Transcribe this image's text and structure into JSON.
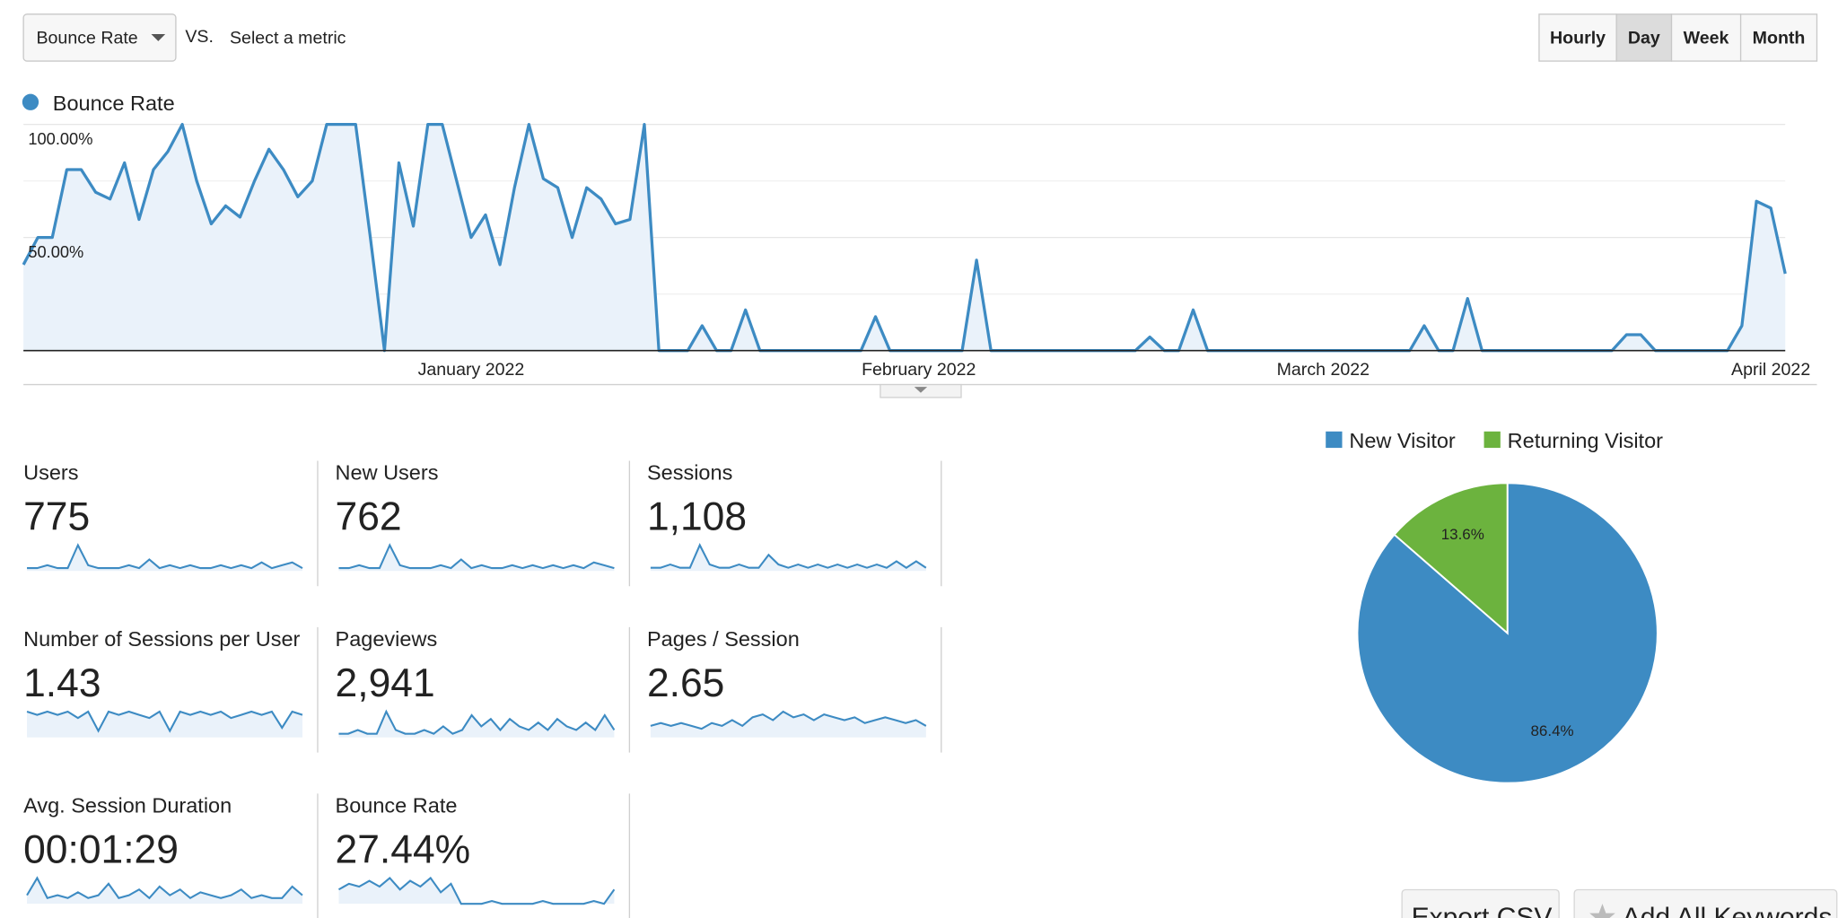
{
  "controls": {
    "metric": "Bounce Rate",
    "vs": "VS.",
    "select": "Select a metric",
    "periods": [
      "Hourly",
      "Day",
      "Week",
      "Month"
    ],
    "active_period": "Day"
  },
  "chart_data": [
    {
      "type": "line",
      "categories": [
        null,
        null,
        null,
        null,
        null,
        null,
        null,
        null,
        null,
        null,
        null,
        null,
        null,
        null,
        null,
        null,
        null,
        null,
        null,
        null,
        null,
        null,
        null,
        null,
        null,
        null,
        null,
        null,
        null,
        null,
        null,
        "January 2022",
        null,
        null,
        null,
        null,
        null,
        null,
        null,
        null,
        null,
        null,
        null,
        null,
        null,
        null,
        null,
        null,
        null,
        null,
        null,
        null,
        null,
        null,
        null,
        null,
        null,
        null,
        null,
        null,
        null,
        null,
        "February 2022",
        null,
        null,
        null,
        null,
        null,
        null,
        null,
        null,
        null,
        null,
        null,
        null,
        null,
        null,
        null,
        null,
        null,
        null,
        null,
        null,
        null,
        null,
        null,
        null,
        null,
        null,
        null,
        "March 2022",
        null,
        null,
        null,
        null,
        null,
        null,
        null,
        null,
        null,
        null,
        null,
        null,
        null,
        null,
        null,
        null,
        null,
        null,
        null,
        null,
        null,
        null,
        null,
        null,
        null,
        null,
        null,
        null,
        null,
        null,
        "April 2022",
        null
      ],
      "series": [
        {
          "name": "Bounce Rate",
          "color": "#3d8bc3",
          "values": [
            38,
            50,
            50,
            80,
            80,
            70,
            67,
            83,
            58,
            80,
            88,
            100,
            75,
            56,
            64,
            59,
            75,
            89,
            80,
            68,
            75,
            100,
            100,
            100,
            51,
            0,
            83,
            55,
            100,
            100,
            75,
            50,
            60,
            38,
            72,
            100,
            76,
            72,
            50,
            72,
            67,
            56,
            58,
            100,
            0,
            0,
            0,
            11,
            0,
            0,
            18,
            0,
            0,
            0,
            0,
            0,
            0,
            0,
            0,
            15,
            0,
            0,
            0,
            0,
            0,
            0,
            40,
            0,
            0,
            0,
            0,
            0,
            0,
            0,
            0,
            0,
            0,
            0,
            6,
            0,
            0,
            18,
            0,
            0,
            0,
            0,
            0,
            0,
            0,
            0,
            0,
            0,
            0,
            0,
            0,
            0,
            0,
            11,
            0,
            0,
            23,
            0,
            0,
            0,
            0,
            0,
            0,
            0,
            0,
            0,
            0,
            7,
            7,
            0,
            0,
            0,
            0,
            0,
            0,
            11,
            66,
            63,
            34
          ]
        }
      ],
      "ylim": [
        0,
        100
      ],
      "yticks": [
        {
          "value": 50,
          "label": "50.00%"
        },
        {
          "value": 100,
          "label": "100.00%"
        }
      ],
      "grid": true,
      "area": true
    },
    {
      "type": "pie",
      "categories": [
        "New Visitor",
        "Returning Visitor"
      ],
      "values": [
        86.4,
        13.6
      ],
      "value_labels": [
        "86.4%",
        "13.6%"
      ],
      "colors": [
        "#3d8bc3",
        "#6cb33e"
      ],
      "legend": "top"
    }
  ],
  "metrics": [
    {
      "label": "Users",
      "value": "775",
      "spark": [
        1,
        1,
        2,
        1,
        1,
        9,
        2,
        1,
        1,
        1,
        2,
        1,
        4,
        1,
        2,
        1,
        2,
        1,
        1,
        2,
        1,
        2,
        1,
        3,
        1,
        2,
        3,
        1
      ]
    },
    {
      "label": "New Users",
      "value": "762",
      "spark": [
        1,
        1,
        2,
        1,
        1,
        9,
        2,
        1,
        1,
        1,
        2,
        1,
        4,
        1,
        2,
        1,
        1,
        2,
        1,
        2,
        1,
        2,
        1,
        2,
        1,
        3,
        2,
        1
      ]
    },
    {
      "label": "Sessions",
      "value": "1,108",
      "spark": [
        1,
        1,
        2,
        1,
        1,
        8,
        2,
        1,
        1,
        2,
        1,
        1,
        5,
        2,
        1,
        2,
        1,
        2,
        1,
        2,
        1,
        2,
        1,
        2,
        1,
        3,
        1,
        3,
        1
      ]
    },
    {
      "label": "Number of Sessions per User",
      "value": "1.43",
      "spark": [
        8,
        7,
        8,
        7,
        8,
        6,
        8,
        2,
        8,
        7,
        8,
        7,
        6,
        8,
        2,
        8,
        7,
        8,
        7,
        8,
        6,
        7,
        8,
        7,
        8,
        3,
        8,
        7
      ]
    },
    {
      "label": "Pageviews",
      "value": "2,941",
      "spark": [
        1,
        1,
        2,
        1,
        1,
        7,
        2,
        1,
        1,
        2,
        1,
        3,
        1,
        2,
        6,
        3,
        5,
        2,
        5,
        3,
        2,
        4,
        2,
        5,
        3,
        2,
        4,
        2,
        6,
        2
      ]
    },
    {
      "label": "Pages / Session",
      "value": "2.65",
      "spark": [
        4,
        5,
        4,
        5,
        4,
        3,
        5,
        4,
        6,
        4,
        7,
        8,
        6,
        9,
        7,
        8,
        6,
        8,
        7,
        6,
        7,
        5,
        6,
        7,
        6,
        5,
        6,
        4
      ]
    },
    {
      "label": "Avg. Session Duration",
      "value": "00:01:29",
      "spark": [
        3,
        9,
        2,
        3,
        2,
        4,
        2,
        3,
        7,
        2,
        3,
        5,
        2,
        6,
        3,
        5,
        2,
        4,
        3,
        2,
        3,
        5,
        2,
        3,
        2,
        2,
        6,
        3
      ]
    },
    {
      "label": "Bounce Rate",
      "value": "27.44%",
      "spark": [
        5,
        7,
        6,
        8,
        6,
        9,
        5,
        8,
        6,
        9,
        4,
        7,
        0,
        0,
        0,
        1,
        0,
        0,
        0,
        0,
        1,
        0,
        0,
        0,
        0,
        1,
        0,
        5
      ]
    }
  ],
  "buttons": [
    "Export CSV",
    "Add All Keywords"
  ]
}
